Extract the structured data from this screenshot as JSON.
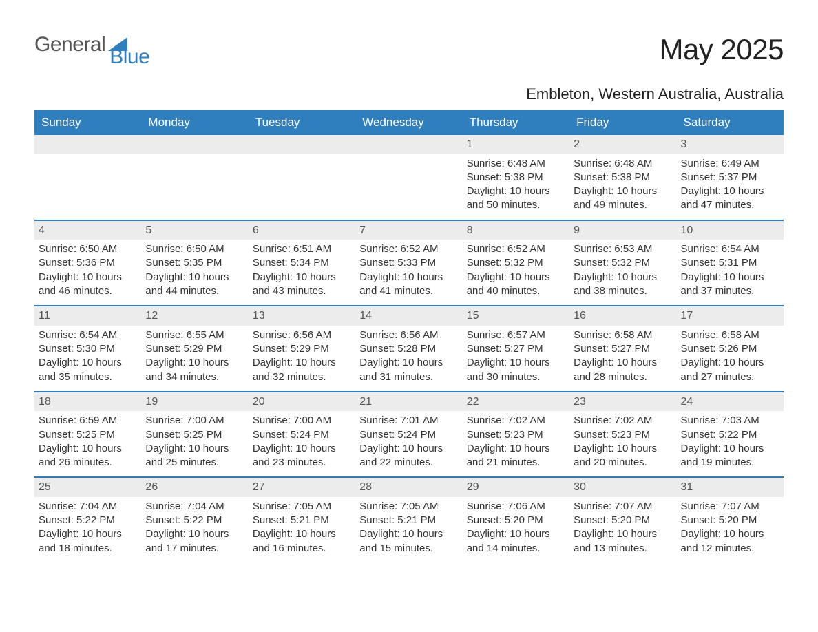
{
  "brand": {
    "part1": "General",
    "part2": "Blue",
    "triangle_color": "#2f7fbf"
  },
  "title": {
    "month": "May 2025",
    "location": "Embleton, Western Australia, Australia"
  },
  "colors": {
    "header_bg": "#2f7fbf",
    "header_text": "#ffffff",
    "daynum_bg": "#ececec",
    "daynum_text": "#555555",
    "rule": "#2f7fbf",
    "body_text": "#333333",
    "background": "#ffffff"
  },
  "typography": {
    "month_fontsize": 42,
    "location_fontsize": 22,
    "dow_fontsize": 17,
    "cell_fontsize": 15
  },
  "day_labels": [
    "Sunday",
    "Monday",
    "Tuesday",
    "Wednesday",
    "Thursday",
    "Friday",
    "Saturday"
  ],
  "line_templates": {
    "sunrise": "Sunrise: {v}",
    "sunset": "Sunset: {v}",
    "daylight1": "Daylight: {h} hours",
    "daylight2": "and {m} minutes."
  },
  "weeks": [
    [
      null,
      null,
      null,
      null,
      {
        "n": "1",
        "sunrise": "6:48 AM",
        "sunset": "5:38 PM",
        "h": "10",
        "m": "50"
      },
      {
        "n": "2",
        "sunrise": "6:48 AM",
        "sunset": "5:38 PM",
        "h": "10",
        "m": "49"
      },
      {
        "n": "3",
        "sunrise": "6:49 AM",
        "sunset": "5:37 PM",
        "h": "10",
        "m": "47"
      }
    ],
    [
      {
        "n": "4",
        "sunrise": "6:50 AM",
        "sunset": "5:36 PM",
        "h": "10",
        "m": "46"
      },
      {
        "n": "5",
        "sunrise": "6:50 AM",
        "sunset": "5:35 PM",
        "h": "10",
        "m": "44"
      },
      {
        "n": "6",
        "sunrise": "6:51 AM",
        "sunset": "5:34 PM",
        "h": "10",
        "m": "43"
      },
      {
        "n": "7",
        "sunrise": "6:52 AM",
        "sunset": "5:33 PM",
        "h": "10",
        "m": "41"
      },
      {
        "n": "8",
        "sunrise": "6:52 AM",
        "sunset": "5:32 PM",
        "h": "10",
        "m": "40"
      },
      {
        "n": "9",
        "sunrise": "6:53 AM",
        "sunset": "5:32 PM",
        "h": "10",
        "m": "38"
      },
      {
        "n": "10",
        "sunrise": "6:54 AM",
        "sunset": "5:31 PM",
        "h": "10",
        "m": "37"
      }
    ],
    [
      {
        "n": "11",
        "sunrise": "6:54 AM",
        "sunset": "5:30 PM",
        "h": "10",
        "m": "35"
      },
      {
        "n": "12",
        "sunrise": "6:55 AM",
        "sunset": "5:29 PM",
        "h": "10",
        "m": "34"
      },
      {
        "n": "13",
        "sunrise": "6:56 AM",
        "sunset": "5:29 PM",
        "h": "10",
        "m": "32"
      },
      {
        "n": "14",
        "sunrise": "6:56 AM",
        "sunset": "5:28 PM",
        "h": "10",
        "m": "31"
      },
      {
        "n": "15",
        "sunrise": "6:57 AM",
        "sunset": "5:27 PM",
        "h": "10",
        "m": "30"
      },
      {
        "n": "16",
        "sunrise": "6:58 AM",
        "sunset": "5:27 PM",
        "h": "10",
        "m": "28"
      },
      {
        "n": "17",
        "sunrise": "6:58 AM",
        "sunset": "5:26 PM",
        "h": "10",
        "m": "27"
      }
    ],
    [
      {
        "n": "18",
        "sunrise": "6:59 AM",
        "sunset": "5:25 PM",
        "h": "10",
        "m": "26"
      },
      {
        "n": "19",
        "sunrise": "7:00 AM",
        "sunset": "5:25 PM",
        "h": "10",
        "m": "25"
      },
      {
        "n": "20",
        "sunrise": "7:00 AM",
        "sunset": "5:24 PM",
        "h": "10",
        "m": "23"
      },
      {
        "n": "21",
        "sunrise": "7:01 AM",
        "sunset": "5:24 PM",
        "h": "10",
        "m": "22"
      },
      {
        "n": "22",
        "sunrise": "7:02 AM",
        "sunset": "5:23 PM",
        "h": "10",
        "m": "21"
      },
      {
        "n": "23",
        "sunrise": "7:02 AM",
        "sunset": "5:23 PM",
        "h": "10",
        "m": "20"
      },
      {
        "n": "24",
        "sunrise": "7:03 AM",
        "sunset": "5:22 PM",
        "h": "10",
        "m": "19"
      }
    ],
    [
      {
        "n": "25",
        "sunrise": "7:04 AM",
        "sunset": "5:22 PM",
        "h": "10",
        "m": "18"
      },
      {
        "n": "26",
        "sunrise": "7:04 AM",
        "sunset": "5:22 PM",
        "h": "10",
        "m": "17"
      },
      {
        "n": "27",
        "sunrise": "7:05 AM",
        "sunset": "5:21 PM",
        "h": "10",
        "m": "16"
      },
      {
        "n": "28",
        "sunrise": "7:05 AM",
        "sunset": "5:21 PM",
        "h": "10",
        "m": "15"
      },
      {
        "n": "29",
        "sunrise": "7:06 AM",
        "sunset": "5:20 PM",
        "h": "10",
        "m": "14"
      },
      {
        "n": "30",
        "sunrise": "7:07 AM",
        "sunset": "5:20 PM",
        "h": "10",
        "m": "13"
      },
      {
        "n": "31",
        "sunrise": "7:07 AM",
        "sunset": "5:20 PM",
        "h": "10",
        "m": "12"
      }
    ]
  ]
}
